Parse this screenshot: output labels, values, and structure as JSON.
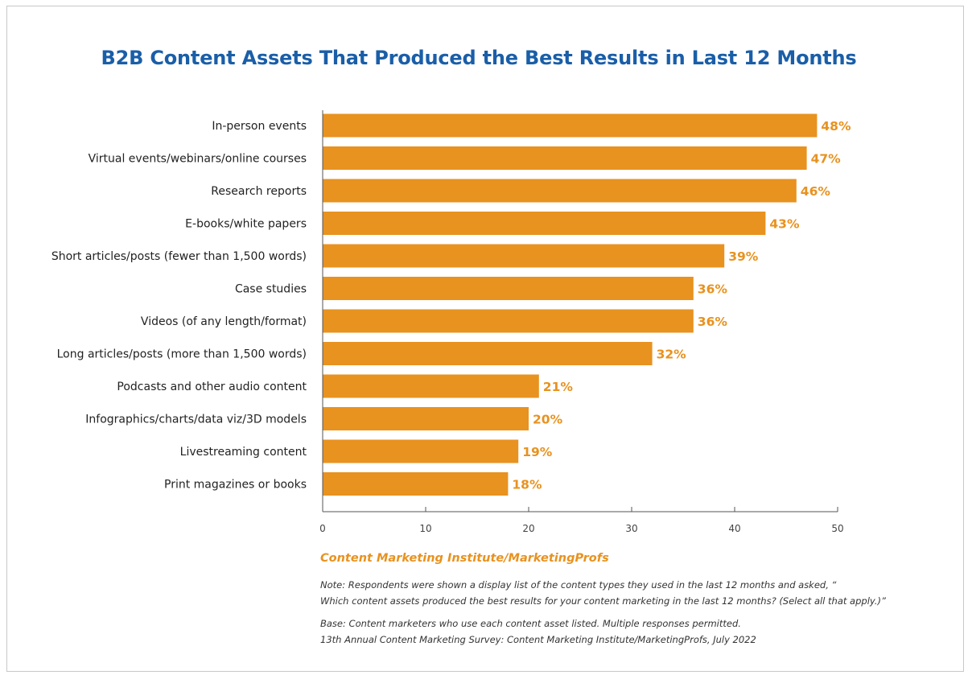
{
  "chart_data": {
    "type": "bar",
    "orientation": "horizontal",
    "title": "B2B Content Assets That Produced the Best Results in Last 12 Months",
    "categories": [
      "In-person events",
      "Virtual events/webinars/online courses",
      "Research reports",
      "E-books/white papers",
      "Short articles/posts (fewer than 1,500 words)",
      "Case studies",
      "Videos (of any length/format)",
      "Long articles/posts (more than 1,500 words)",
      "Podcasts and other audio content",
      "Infographics/charts/data viz/3D models",
      "Livestreaming content",
      "Print magazines or books"
    ],
    "values": [
      48,
      47,
      46,
      43,
      39,
      36,
      36,
      32,
      21,
      20,
      19,
      18
    ],
    "value_labels": [
      "48%",
      "47%",
      "46%",
      "43%",
      "39%",
      "36%",
      "36%",
      "32%",
      "21%",
      "20%",
      "19%",
      "18%"
    ],
    "xlim": [
      0,
      50
    ],
    "xticks": [
      "0",
      "10",
      "20",
      "30",
      "40",
      "50"
    ],
    "grid": false,
    "bar_color": "#e8921f",
    "label_color": "#e8921f"
  },
  "source": "Content Marketing Institute/MarketingProfs",
  "note_line1": "Note: Respondents were shown a display list of the content types they used in the last 12 months and asked, “",
  "note_line2": "Which content assets produced the best results for your content marketing in the last 12 months? (Select all that apply.)”",
  "base_line1": "Base: Content marketers who use each content asset listed. Multiple responses permitted.",
  "base_line2": "13th Annual Content Marketing Survey: Content Marketing Institute/MarketingProfs, July 2022"
}
